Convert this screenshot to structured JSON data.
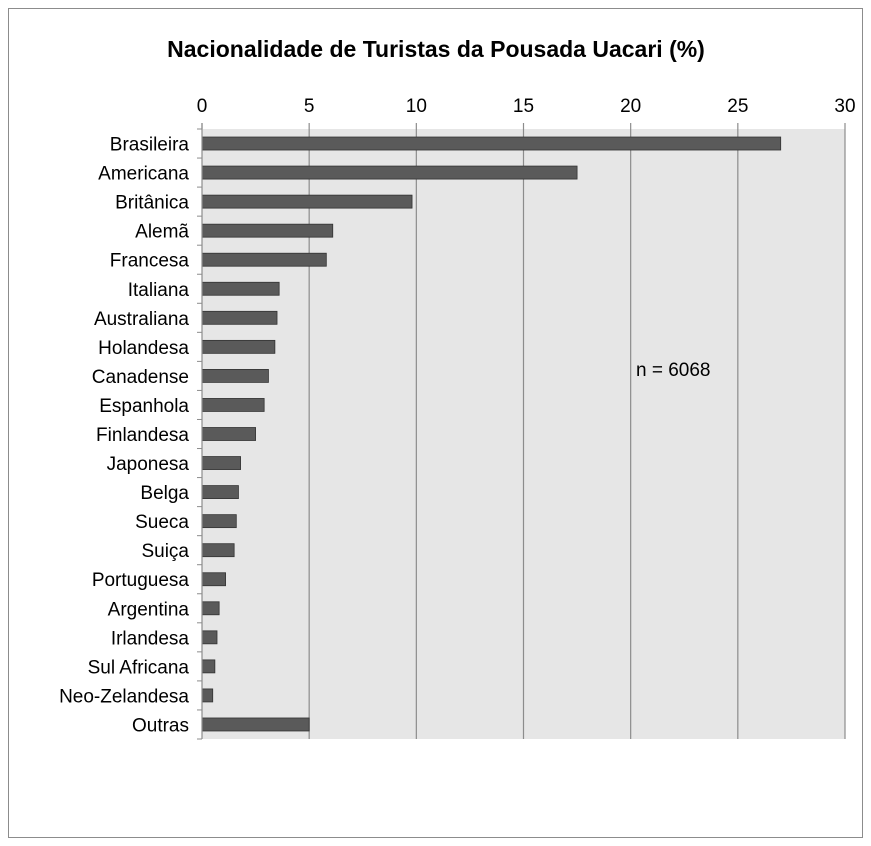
{
  "chart_data": {
    "type": "bar",
    "orientation": "horizontal",
    "title": "Nacionalidade de Turistas da Pousada Uacari (%)",
    "xlabel": "",
    "ylabel": "",
    "xlim": [
      0,
      30
    ],
    "x_ticks": [
      0,
      5,
      10,
      15,
      20,
      25,
      30
    ],
    "x_axis_position": "top",
    "grid": true,
    "categories": [
      "Brasileira",
      "Americana",
      "Britânica",
      "Alemã",
      "Francesa",
      "Italiana",
      "Australiana",
      "Holandesa",
      "Canadense",
      "Espanhola",
      "Finlandesa",
      "Japonesa",
      "Belga",
      "Sueca",
      "Suiça",
      "Portuguesa",
      "Argentina",
      "Irlandesa",
      "Sul Africana",
      "Neo-Zelandesa",
      "Outras"
    ],
    "values": [
      27.0,
      17.5,
      9.8,
      6.1,
      5.8,
      3.6,
      3.5,
      3.4,
      3.1,
      2.9,
      2.5,
      1.8,
      1.7,
      1.6,
      1.5,
      1.1,
      0.8,
      0.7,
      0.6,
      0.5,
      5.0
    ],
    "bar_color": "#5a5a5a",
    "plot_background": "#e6e6e6",
    "annotation": "n = 6068"
  }
}
